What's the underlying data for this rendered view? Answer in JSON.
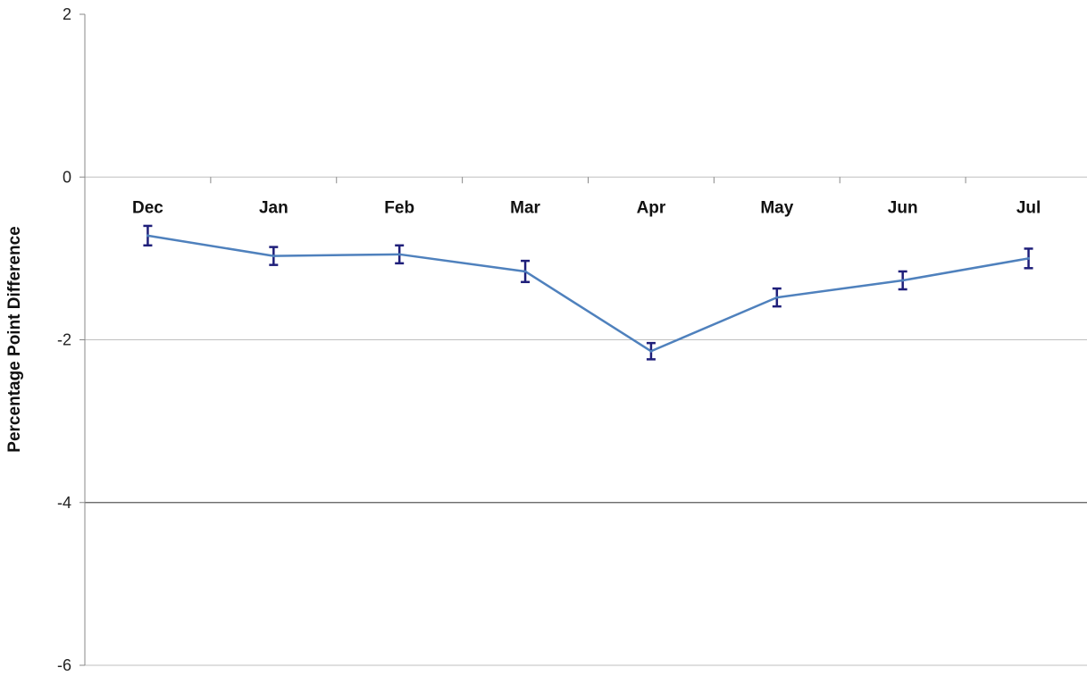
{
  "chart_data": {
    "type": "line",
    "title": "",
    "xlabel": "",
    "ylabel": "Percentage Point Difference",
    "ylim": [
      -6,
      2
    ],
    "yticks": [
      2,
      0,
      -2,
      -4,
      -6
    ],
    "categories": [
      "Dec",
      "Jan",
      "Feb",
      "Mar",
      "Apr",
      "May",
      "Jun",
      "Jul"
    ],
    "series": [
      {
        "values": [
          -0.72,
          -0.97,
          -0.95,
          -1.16,
          -2.14,
          -1.48,
          -1.27,
          -1.0
        ],
        "error": [
          0.12,
          0.11,
          0.11,
          0.13,
          0.1,
          0.11,
          0.11,
          0.12
        ]
      }
    ],
    "grid": "horizontal",
    "legend": "none",
    "colors": {
      "line": "#4f81bd",
      "error_bar": "#1f1f7a",
      "grid": "#bfbfbf",
      "axis": "#888888",
      "dark_grid": "#595959"
    }
  }
}
